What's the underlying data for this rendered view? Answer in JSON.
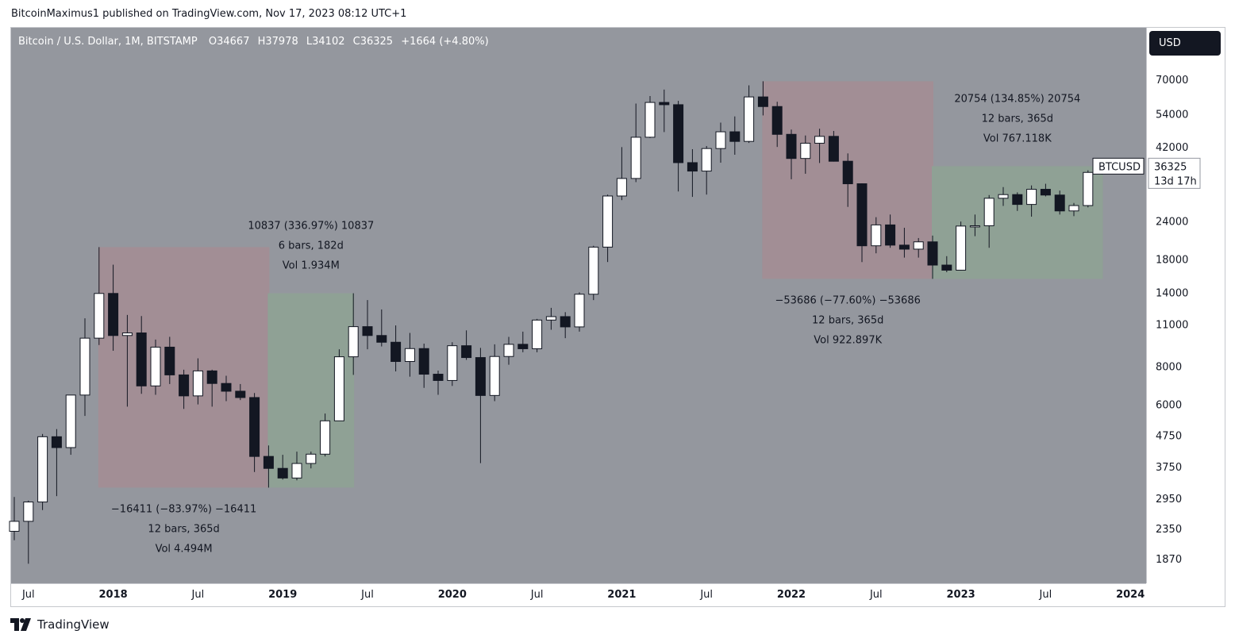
{
  "publisher_line": "BitcoinMaximus1 published on TradingView.com, Nov 17, 2023 08:12 UTC+1",
  "header": {
    "symbol_info": "Bitcoin / U.S. Dollar, 1M, BITSTAMP",
    "o_label": "O",
    "o_value": "34667",
    "h_label": "H",
    "h_value": "37978",
    "l_label": "L",
    "l_value": "34102",
    "c_label": "C",
    "c_value": "36325",
    "change": "+1664 (+4.80%)"
  },
  "currency_button": "USD",
  "last_price": {
    "symbol": "BTCUSD",
    "price": "36325",
    "countdown": "13d 17h"
  },
  "branding": {
    "logo_text": "TradingView"
  },
  "colors": {
    "plot_bg": "#94979e",
    "bull_body": "#ffffff",
    "bear_body": "#131722",
    "wick": "#131722",
    "range_down": "#a28e95",
    "range_up": "#8fa195"
  },
  "chart_data": {
    "type": "candlestick",
    "interval": "1M",
    "exchange": "BITSTAMP",
    "y_scale": "log",
    "ylim": [
      1650,
      100000
    ],
    "y_ticks": [
      "1870",
      "2350",
      "2950",
      "3750",
      "4750",
      "6000",
      "8000",
      "11000",
      "14000",
      "18000",
      "24000",
      "42000",
      "54000",
      "70000"
    ],
    "x_ticks": [
      {
        "label": "Jul",
        "date": "2017-07",
        "major": false
      },
      {
        "label": "2018",
        "date": "2018-01",
        "major": true
      },
      {
        "label": "Jul",
        "date": "2018-07",
        "major": false
      },
      {
        "label": "2019",
        "date": "2019-01",
        "major": true
      },
      {
        "label": "Jul",
        "date": "2019-07",
        "major": false
      },
      {
        "label": "2020",
        "date": "2020-01",
        "major": true
      },
      {
        "label": "Jul",
        "date": "2020-07",
        "major": false
      },
      {
        "label": "2021",
        "date": "2021-01",
        "major": true
      },
      {
        "label": "Jul",
        "date": "2021-07",
        "major": false
      },
      {
        "label": "2022",
        "date": "2022-01",
        "major": true
      },
      {
        "label": "Jul",
        "date": "2022-07",
        "major": false
      },
      {
        "label": "2023",
        "date": "2023-01",
        "major": true
      },
      {
        "label": "Jul",
        "date": "2023-07",
        "major": false
      },
      {
        "label": "2024",
        "date": "2024-01",
        "major": true
      }
    ],
    "candles": [
      {
        "date": "2017-06",
        "o": 2300,
        "h": 2980,
        "l": 2150,
        "c": 2480
      },
      {
        "date": "2017-07",
        "o": 2480,
        "h": 2900,
        "l": 1800,
        "c": 2870
      },
      {
        "date": "2017-08",
        "o": 2870,
        "h": 4800,
        "l": 2700,
        "c": 4700
      },
      {
        "date": "2017-09",
        "o": 4700,
        "h": 4980,
        "l": 3000,
        "c": 4330
      },
      {
        "date": "2017-10",
        "o": 4330,
        "h": 6450,
        "l": 4100,
        "c": 6440
      },
      {
        "date": "2017-11",
        "o": 6440,
        "h": 11500,
        "l": 5500,
        "c": 9900
      },
      {
        "date": "2017-12",
        "o": 9900,
        "h": 19700,
        "l": 9400,
        "c": 13880
      },
      {
        "date": "2018-01",
        "o": 13880,
        "h": 17250,
        "l": 9000,
        "c": 10100
      },
      {
        "date": "2018-02",
        "o": 10100,
        "h": 11800,
        "l": 5900,
        "c": 10300
      },
      {
        "date": "2018-03",
        "o": 10300,
        "h": 11700,
        "l": 6500,
        "c": 6900
      },
      {
        "date": "2018-04",
        "o": 6900,
        "h": 9800,
        "l": 6450,
        "c": 9250
      },
      {
        "date": "2018-05",
        "o": 9250,
        "h": 10000,
        "l": 7000,
        "c": 7500
      },
      {
        "date": "2018-06",
        "o": 7500,
        "h": 7800,
        "l": 5800,
        "c": 6400
      },
      {
        "date": "2018-07",
        "o": 6400,
        "h": 8500,
        "l": 6000,
        "c": 7730
      },
      {
        "date": "2018-08",
        "o": 7730,
        "h": 7800,
        "l": 5900,
        "c": 7030
      },
      {
        "date": "2018-09",
        "o": 7030,
        "h": 7450,
        "l": 6150,
        "c": 6630
      },
      {
        "date": "2018-10",
        "o": 6630,
        "h": 7000,
        "l": 6200,
        "c": 6320
      },
      {
        "date": "2018-11",
        "o": 6320,
        "h": 6540,
        "l": 3600,
        "c": 4050
      },
      {
        "date": "2018-12",
        "o": 4050,
        "h": 4400,
        "l": 3200,
        "c": 3700
      },
      {
        "date": "2019-01",
        "o": 3700,
        "h": 4100,
        "l": 3400,
        "c": 3440
      },
      {
        "date": "2019-02",
        "o": 3440,
        "h": 4200,
        "l": 3380,
        "c": 3840
      },
      {
        "date": "2019-03",
        "o": 3840,
        "h": 4200,
        "l": 3700,
        "c": 4120
      },
      {
        "date": "2019-04",
        "o": 4120,
        "h": 5600,
        "l": 4050,
        "c": 5300
      },
      {
        "date": "2019-05",
        "o": 5300,
        "h": 9100,
        "l": 5300,
        "c": 8600
      },
      {
        "date": "2019-06",
        "o": 8600,
        "h": 13900,
        "l": 7500,
        "c": 10800
      },
      {
        "date": "2019-07",
        "o": 10800,
        "h": 13200,
        "l": 9100,
        "c": 10100
      },
      {
        "date": "2019-08",
        "o": 10100,
        "h": 12300,
        "l": 9300,
        "c": 9600
      },
      {
        "date": "2019-09",
        "o": 9600,
        "h": 10900,
        "l": 7700,
        "c": 8300
      },
      {
        "date": "2019-10",
        "o": 8300,
        "h": 10300,
        "l": 7400,
        "c": 9150
      },
      {
        "date": "2019-11",
        "o": 9150,
        "h": 9500,
        "l": 6800,
        "c": 7540
      },
      {
        "date": "2019-12",
        "o": 7540,
        "h": 7750,
        "l": 6450,
        "c": 7190
      },
      {
        "date": "2020-01",
        "o": 7190,
        "h": 9600,
        "l": 6900,
        "c": 9350
      },
      {
        "date": "2020-02",
        "o": 9350,
        "h": 10500,
        "l": 8400,
        "c": 8550
      },
      {
        "date": "2020-03",
        "o": 8550,
        "h": 9200,
        "l": 3850,
        "c": 6420
      },
      {
        "date": "2020-04",
        "o": 6420,
        "h": 9450,
        "l": 6150,
        "c": 8620
      },
      {
        "date": "2020-05",
        "o": 8620,
        "h": 10000,
        "l": 8100,
        "c": 9450
      },
      {
        "date": "2020-06",
        "o": 9450,
        "h": 10400,
        "l": 8900,
        "c": 9140
      },
      {
        "date": "2020-07",
        "o": 9140,
        "h": 11450,
        "l": 8900,
        "c": 11350
      },
      {
        "date": "2020-08",
        "o": 11350,
        "h": 12450,
        "l": 10550,
        "c": 11650
      },
      {
        "date": "2020-09",
        "o": 11650,
        "h": 12050,
        "l": 9900,
        "c": 10780
      },
      {
        "date": "2020-10",
        "o": 10780,
        "h": 14000,
        "l": 10400,
        "c": 13800
      },
      {
        "date": "2020-11",
        "o": 13800,
        "h": 19900,
        "l": 13200,
        "c": 19700
      },
      {
        "date": "2020-12",
        "o": 19700,
        "h": 29300,
        "l": 17600,
        "c": 28990
      },
      {
        "date": "2021-01",
        "o": 28990,
        "h": 41950,
        "l": 28100,
        "c": 33100
      },
      {
        "date": "2021-02",
        "o": 33100,
        "h": 58300,
        "l": 32200,
        "c": 45200
      },
      {
        "date": "2021-03",
        "o": 45200,
        "h": 61700,
        "l": 44900,
        "c": 58800
      },
      {
        "date": "2021-04",
        "o": 58800,
        "h": 64800,
        "l": 47000,
        "c": 57800
      },
      {
        "date": "2021-05",
        "o": 57800,
        "h": 59500,
        "l": 30000,
        "c": 37300
      },
      {
        "date": "2021-06",
        "o": 37300,
        "h": 41300,
        "l": 28800,
        "c": 35000
      },
      {
        "date": "2021-07",
        "o": 35000,
        "h": 42300,
        "l": 29300,
        "c": 41500
      },
      {
        "date": "2021-08",
        "o": 41500,
        "h": 50500,
        "l": 37300,
        "c": 47100
      },
      {
        "date": "2021-09",
        "o": 47100,
        "h": 52900,
        "l": 39600,
        "c": 43800
      },
      {
        "date": "2021-10",
        "o": 43800,
        "h": 66900,
        "l": 43300,
        "c": 61300
      },
      {
        "date": "2021-11",
        "o": 61300,
        "h": 69000,
        "l": 53300,
        "c": 57000
      },
      {
        "date": "2021-12",
        "o": 57000,
        "h": 59100,
        "l": 42000,
        "c": 46200
      },
      {
        "date": "2022-01",
        "o": 46200,
        "h": 47900,
        "l": 32900,
        "c": 38500
      },
      {
        "date": "2022-02",
        "o": 38500,
        "h": 45800,
        "l": 34300,
        "c": 43200
      },
      {
        "date": "2022-03",
        "o": 43200,
        "h": 48200,
        "l": 37200,
        "c": 45500
      },
      {
        "date": "2022-04",
        "o": 45500,
        "h": 47400,
        "l": 37600,
        "c": 37700
      },
      {
        "date": "2022-05",
        "o": 37700,
        "h": 40000,
        "l": 26700,
        "c": 31800
      },
      {
        "date": "2022-06",
        "o": 31800,
        "h": 31900,
        "l": 17600,
        "c": 19900
      },
      {
        "date": "2022-07",
        "o": 19900,
        "h": 24700,
        "l": 18800,
        "c": 23300
      },
      {
        "date": "2022-08",
        "o": 23300,
        "h": 25200,
        "l": 19600,
        "c": 20000
      },
      {
        "date": "2022-09",
        "o": 20000,
        "h": 22800,
        "l": 18200,
        "c": 19400
      },
      {
        "date": "2022-10",
        "o": 19400,
        "h": 21100,
        "l": 18200,
        "c": 20500
      },
      {
        "date": "2022-11",
        "o": 20500,
        "h": 21500,
        "l": 15500,
        "c": 17200
      },
      {
        "date": "2022-12",
        "o": 17200,
        "h": 18400,
        "l": 16300,
        "c": 16550
      },
      {
        "date": "2023-01",
        "o": 16550,
        "h": 23900,
        "l": 16500,
        "c": 23100
      },
      {
        "date": "2023-02",
        "o": 23100,
        "h": 25200,
        "l": 21400,
        "c": 23150
      },
      {
        "date": "2023-03",
        "o": 23150,
        "h": 29200,
        "l": 19600,
        "c": 28500
      },
      {
        "date": "2023-04",
        "o": 28500,
        "h": 31000,
        "l": 26900,
        "c": 29300
      },
      {
        "date": "2023-05",
        "o": 29300,
        "h": 29800,
        "l": 25900,
        "c": 27200
      },
      {
        "date": "2023-06",
        "o": 27200,
        "h": 31400,
        "l": 24800,
        "c": 30500
      },
      {
        "date": "2023-07",
        "o": 30500,
        "h": 31800,
        "l": 28900,
        "c": 29200
      },
      {
        "date": "2023-08",
        "o": 29200,
        "h": 30200,
        "l": 25200,
        "c": 25900
      },
      {
        "date": "2023-09",
        "o": 25900,
        "h": 27500,
        "l": 24900,
        "c": 26970
      },
      {
        "date": "2023-10",
        "o": 26970,
        "h": 35200,
        "l": 26600,
        "c": 34650
      },
      {
        "date": "2023-11",
        "o": 34667,
        "h": 37978,
        "l": 34102,
        "c": 36325
      }
    ],
    "range_annotations": [
      {
        "direction": "down",
        "start": "2017-12",
        "end": "2018-12",
        "top": 19700,
        "bottom": 3200,
        "label_position": "below",
        "lines": [
          "−16411 (−83.97%) −16411",
          "12 bars, 365d",
          "Vol 4.494M"
        ]
      },
      {
        "direction": "up",
        "start": "2018-12",
        "end": "2019-06",
        "top": 13900,
        "bottom": 3200,
        "label_position": "above",
        "lines": [
          "10837 (336.97%) 10837",
          "6 bars, 182d",
          "Vol 1.934M"
        ]
      },
      {
        "direction": "down",
        "start": "2021-11",
        "end": "2022-11",
        "top": 69000,
        "bottom": 15500,
        "label_position": "below",
        "lines": [
          "−53686 (−77.60%) −53686",
          "12 bars, 365d",
          "Vol 922.897K"
        ]
      },
      {
        "direction": "up",
        "start": "2022-11",
        "end": "2023-11",
        "top": 36325,
        "bottom": 15500,
        "label_position": "above",
        "lines": [
          "20754 (134.85%) 20754",
          "12 bars, 365d",
          "Vol 767.118K"
        ]
      }
    ]
  }
}
